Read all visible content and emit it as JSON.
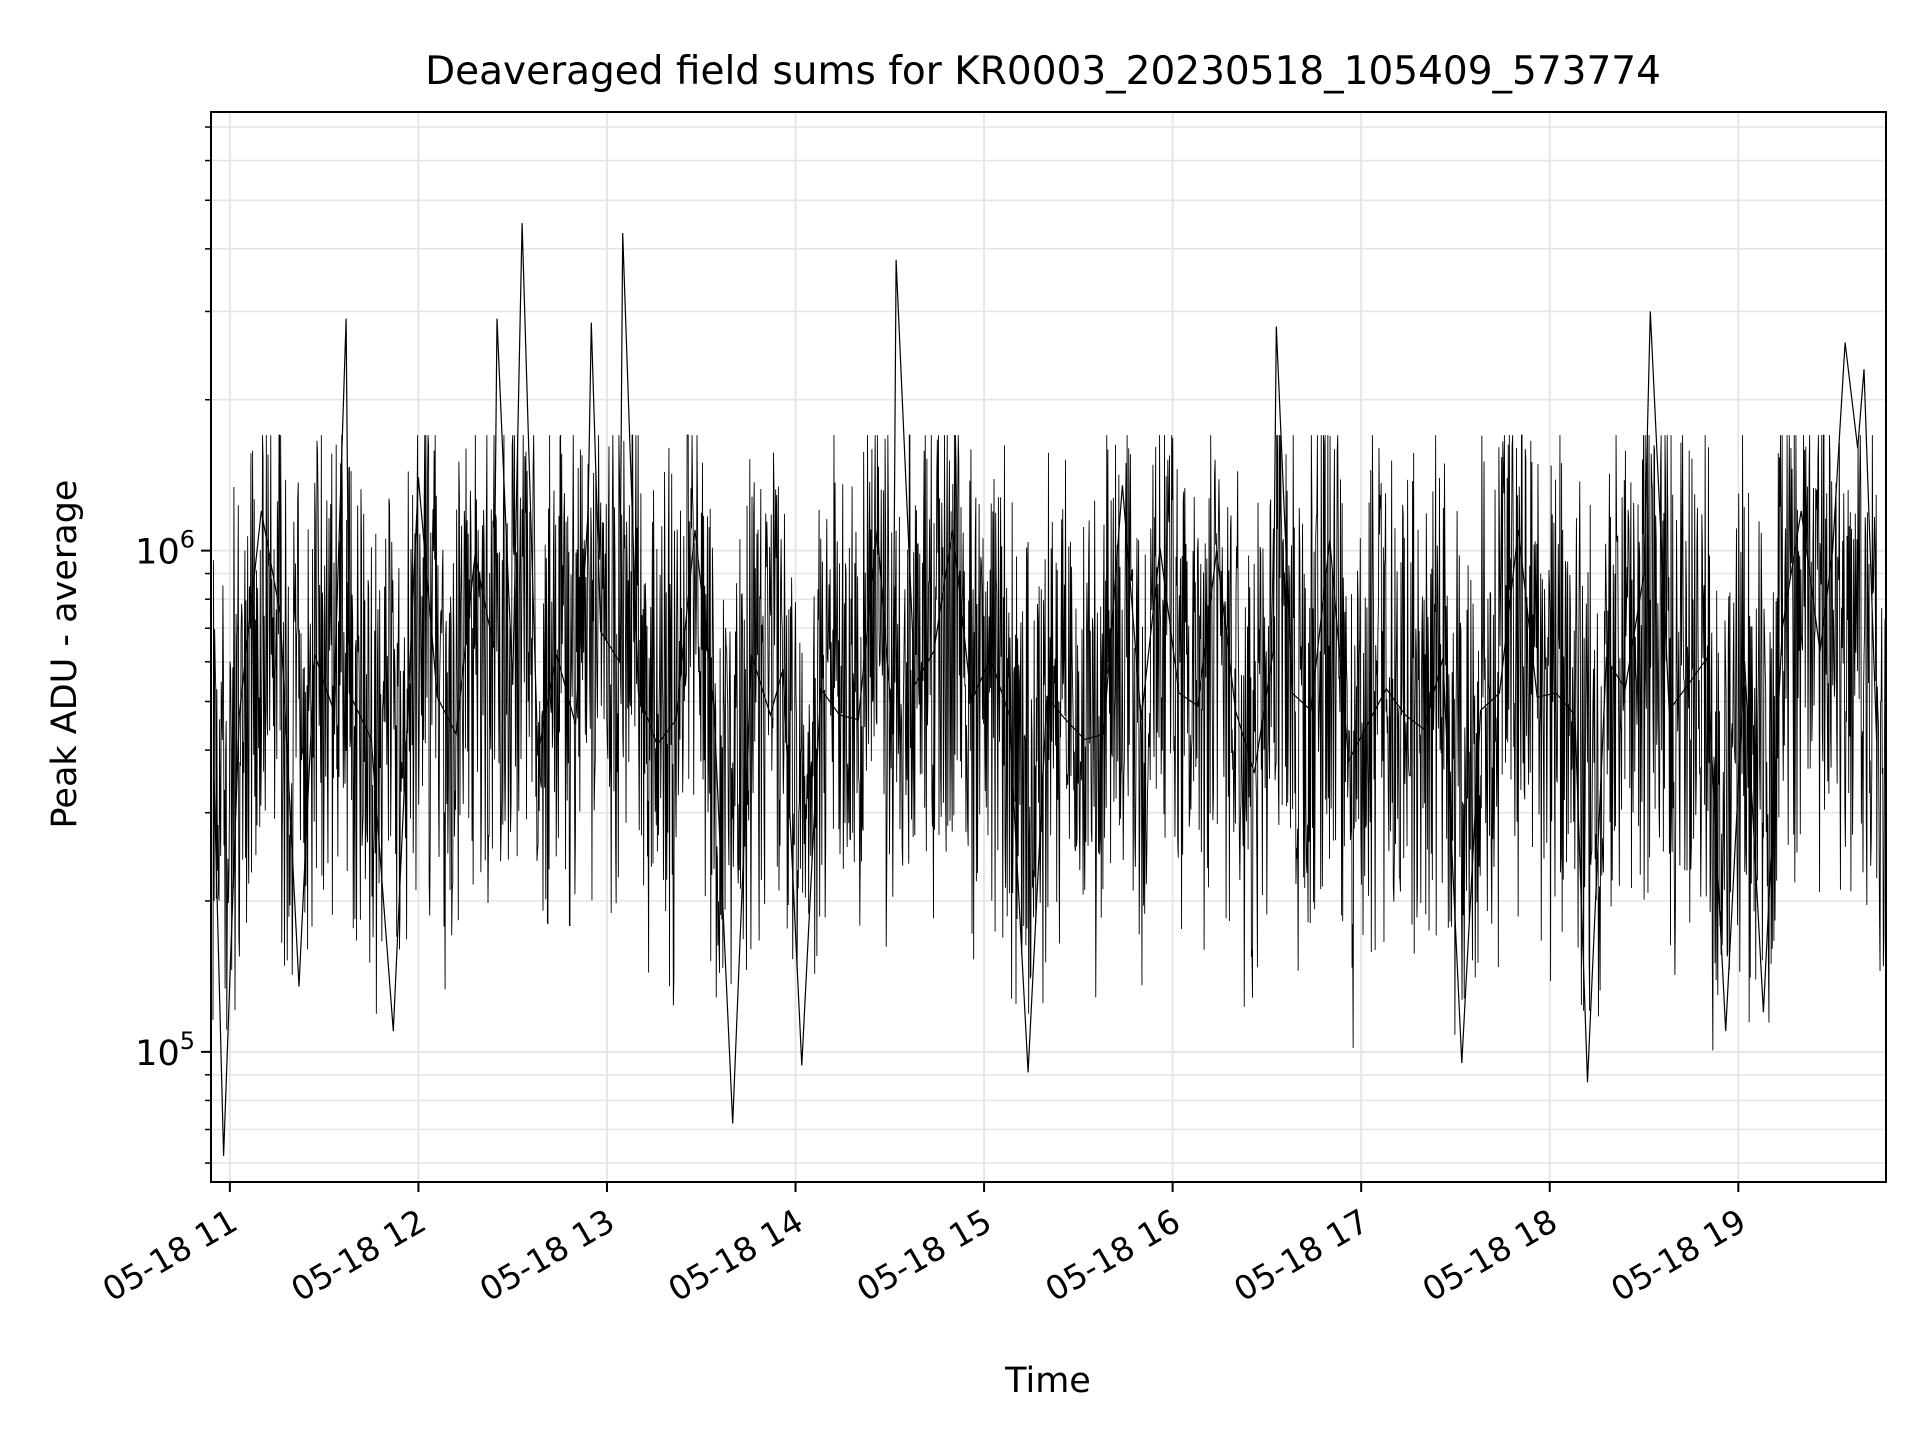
{
  "chart_data": {
    "type": "line",
    "title": "Deaveraged field sums for KR0003_20230518_105409_573774",
    "xlabel": "Time",
    "ylabel": "Peak ADU - average",
    "yscale": "log",
    "ylim": [
      55000,
      7500000
    ],
    "xlim": [
      "2023-05-18 10:54",
      "2023-05-18 19:47"
    ],
    "grid": true,
    "x_ticks": [
      {
        "t": "2023-05-18 11:00",
        "label": "05-18 11"
      },
      {
        "t": "2023-05-18 12:00",
        "label": "05-18 12"
      },
      {
        "t": "2023-05-18 13:00",
        "label": "05-18 13"
      },
      {
        "t": "2023-05-18 14:00",
        "label": "05-18 14"
      },
      {
        "t": "2023-05-18 15:00",
        "label": "05-18 15"
      },
      {
        "t": "2023-05-18 16:00",
        "label": "05-18 16"
      },
      {
        "t": "2023-05-18 17:00",
        "label": "05-18 17"
      },
      {
        "t": "2023-05-18 18:00",
        "label": "05-18 18"
      },
      {
        "t": "2023-05-18 19:00",
        "label": "05-18 19"
      }
    ],
    "y_ticks": [
      {
        "value": 100000,
        "base": "10",
        "exp": "5"
      },
      {
        "value": 1000000,
        "base": "10",
        "exp": "6"
      }
    ],
    "series_color": "#000000",
    "grid_color": "#e6e6e6",
    "series": [
      {
        "x": [
          "2023-05-18 10:55",
          "2023-05-18 10:58",
          "2023-05-18 11:03",
          "2023-05-18 11:10",
          "2023-05-18 11:16",
          "2023-05-18 11:22",
          "2023-05-18 11:27",
          "2023-05-18 11:33",
          "2023-05-18 11:37",
          "2023-05-18 11:38",
          "2023-05-18 11:45",
          "2023-05-18 11:52",
          "2023-05-18 12:00",
          "2023-05-18 12:06",
          "2023-05-18 12:12",
          "2023-05-18 12:18",
          "2023-05-18 12:24",
          "2023-05-18 12:25",
          "2023-05-18 12:30",
          "2023-05-18 12:33",
          "2023-05-18 12:38",
          "2023-05-18 12:44",
          "2023-05-18 12:50",
          "2023-05-18 12:54",
          "2023-05-18 12:55",
          "2023-05-18 12:58",
          "2023-05-18 13:04",
          "2023-05-18 13:05",
          "2023-05-18 13:10",
          "2023-05-18 13:16",
          "2023-05-18 13:22",
          "2023-05-18 13:28",
          "2023-05-18 13:34",
          "2023-05-18 13:40",
          "2023-05-18 13:46",
          "2023-05-18 13:52",
          "2023-05-18 13:56",
          "2023-05-18 14:02",
          "2023-05-18 14:08",
          "2023-05-18 14:14",
          "2023-05-18 14:20",
          "2023-05-18 14:26",
          "2023-05-18 14:31",
          "2023-05-18 14:32",
          "2023-05-18 14:38",
          "2023-05-18 14:44",
          "2023-05-18 14:50",
          "2023-05-18 14:56",
          "2023-05-18 15:02",
          "2023-05-18 15:08",
          "2023-05-18 15:14",
          "2023-05-18 15:20",
          "2023-05-18 15:26",
          "2023-05-18 15:32",
          "2023-05-18 15:38",
          "2023-05-18 15:44",
          "2023-05-18 15:50",
          "2023-05-18 15:56",
          "2023-05-18 16:02",
          "2023-05-18 16:08",
          "2023-05-18 16:14",
          "2023-05-18 16:20",
          "2023-05-18 16:26",
          "2023-05-18 16:32",
          "2023-05-18 16:33",
          "2023-05-18 16:38",
          "2023-05-18 16:44",
          "2023-05-18 16:50",
          "2023-05-18 16:56",
          "2023-05-18 17:02",
          "2023-05-18 17:08",
          "2023-05-18 17:14",
          "2023-05-18 17:20",
          "2023-05-18 17:26",
          "2023-05-18 17:32",
          "2023-05-18 17:38",
          "2023-05-18 17:44",
          "2023-05-18 17:50",
          "2023-05-18 17:56",
          "2023-05-18 18:02",
          "2023-05-18 18:08",
          "2023-05-18 18:12",
          "2023-05-18 18:18",
          "2023-05-18 18:24",
          "2023-05-18 18:30",
          "2023-05-18 18:32",
          "2023-05-18 18:38",
          "2023-05-18 18:44",
          "2023-05-18 18:50",
          "2023-05-18 18:56",
          "2023-05-18 19:02",
          "2023-05-18 19:08",
          "2023-05-18 19:14",
          "2023-05-18 19:20",
          "2023-05-18 19:26",
          "2023-05-18 19:30",
          "2023-05-18 19:34",
          "2023-05-18 19:38",
          "2023-05-18 19:40",
          "2023-05-18 19:44"
        ],
        "values": [
          350000,
          62000,
          470000,
          1200000,
          750000,
          135000,
          620000,
          480000,
          2900000,
          520000,
          420000,
          110000,
          1400000,
          510000,
          430000,
          980000,
          640000,
          2900000,
          540000,
          4500000,
          390000,
          620000,
          450000,
          1200000,
          2850000,
          690000,
          600000,
          4300000,
          520000,
          410000,
          460000,
          1100000,
          490000,
          72000,
          620000,
          470000,
          580000,
          94000,
          530000,
          470000,
          460000,
          1100000,
          430000,
          3800000,
          540000,
          630000,
          1100000,
          500000,
          610000,
          470000,
          91000,
          510000,
          460000,
          420000,
          430000,
          1350000,
          460000,
          1010000,
          520000,
          490000,
          1000000,
          480000,
          360000,
          630000,
          2800000,
          520000,
          480000,
          1050000,
          380000,
          450000,
          530000,
          470000,
          440000,
          610000,
          95000,
          480000,
          520000,
          1100000,
          510000,
          520000,
          470000,
          87000,
          610000,
          530000,
          900000,
          3000000,
          480000,
          540000,
          610000,
          110000,
          600000,
          120000,
          700000,
          1200000,
          630000,
          1000000,
          2600000,
          1600000,
          2300000,
          420000
        ]
      }
    ]
  }
}
